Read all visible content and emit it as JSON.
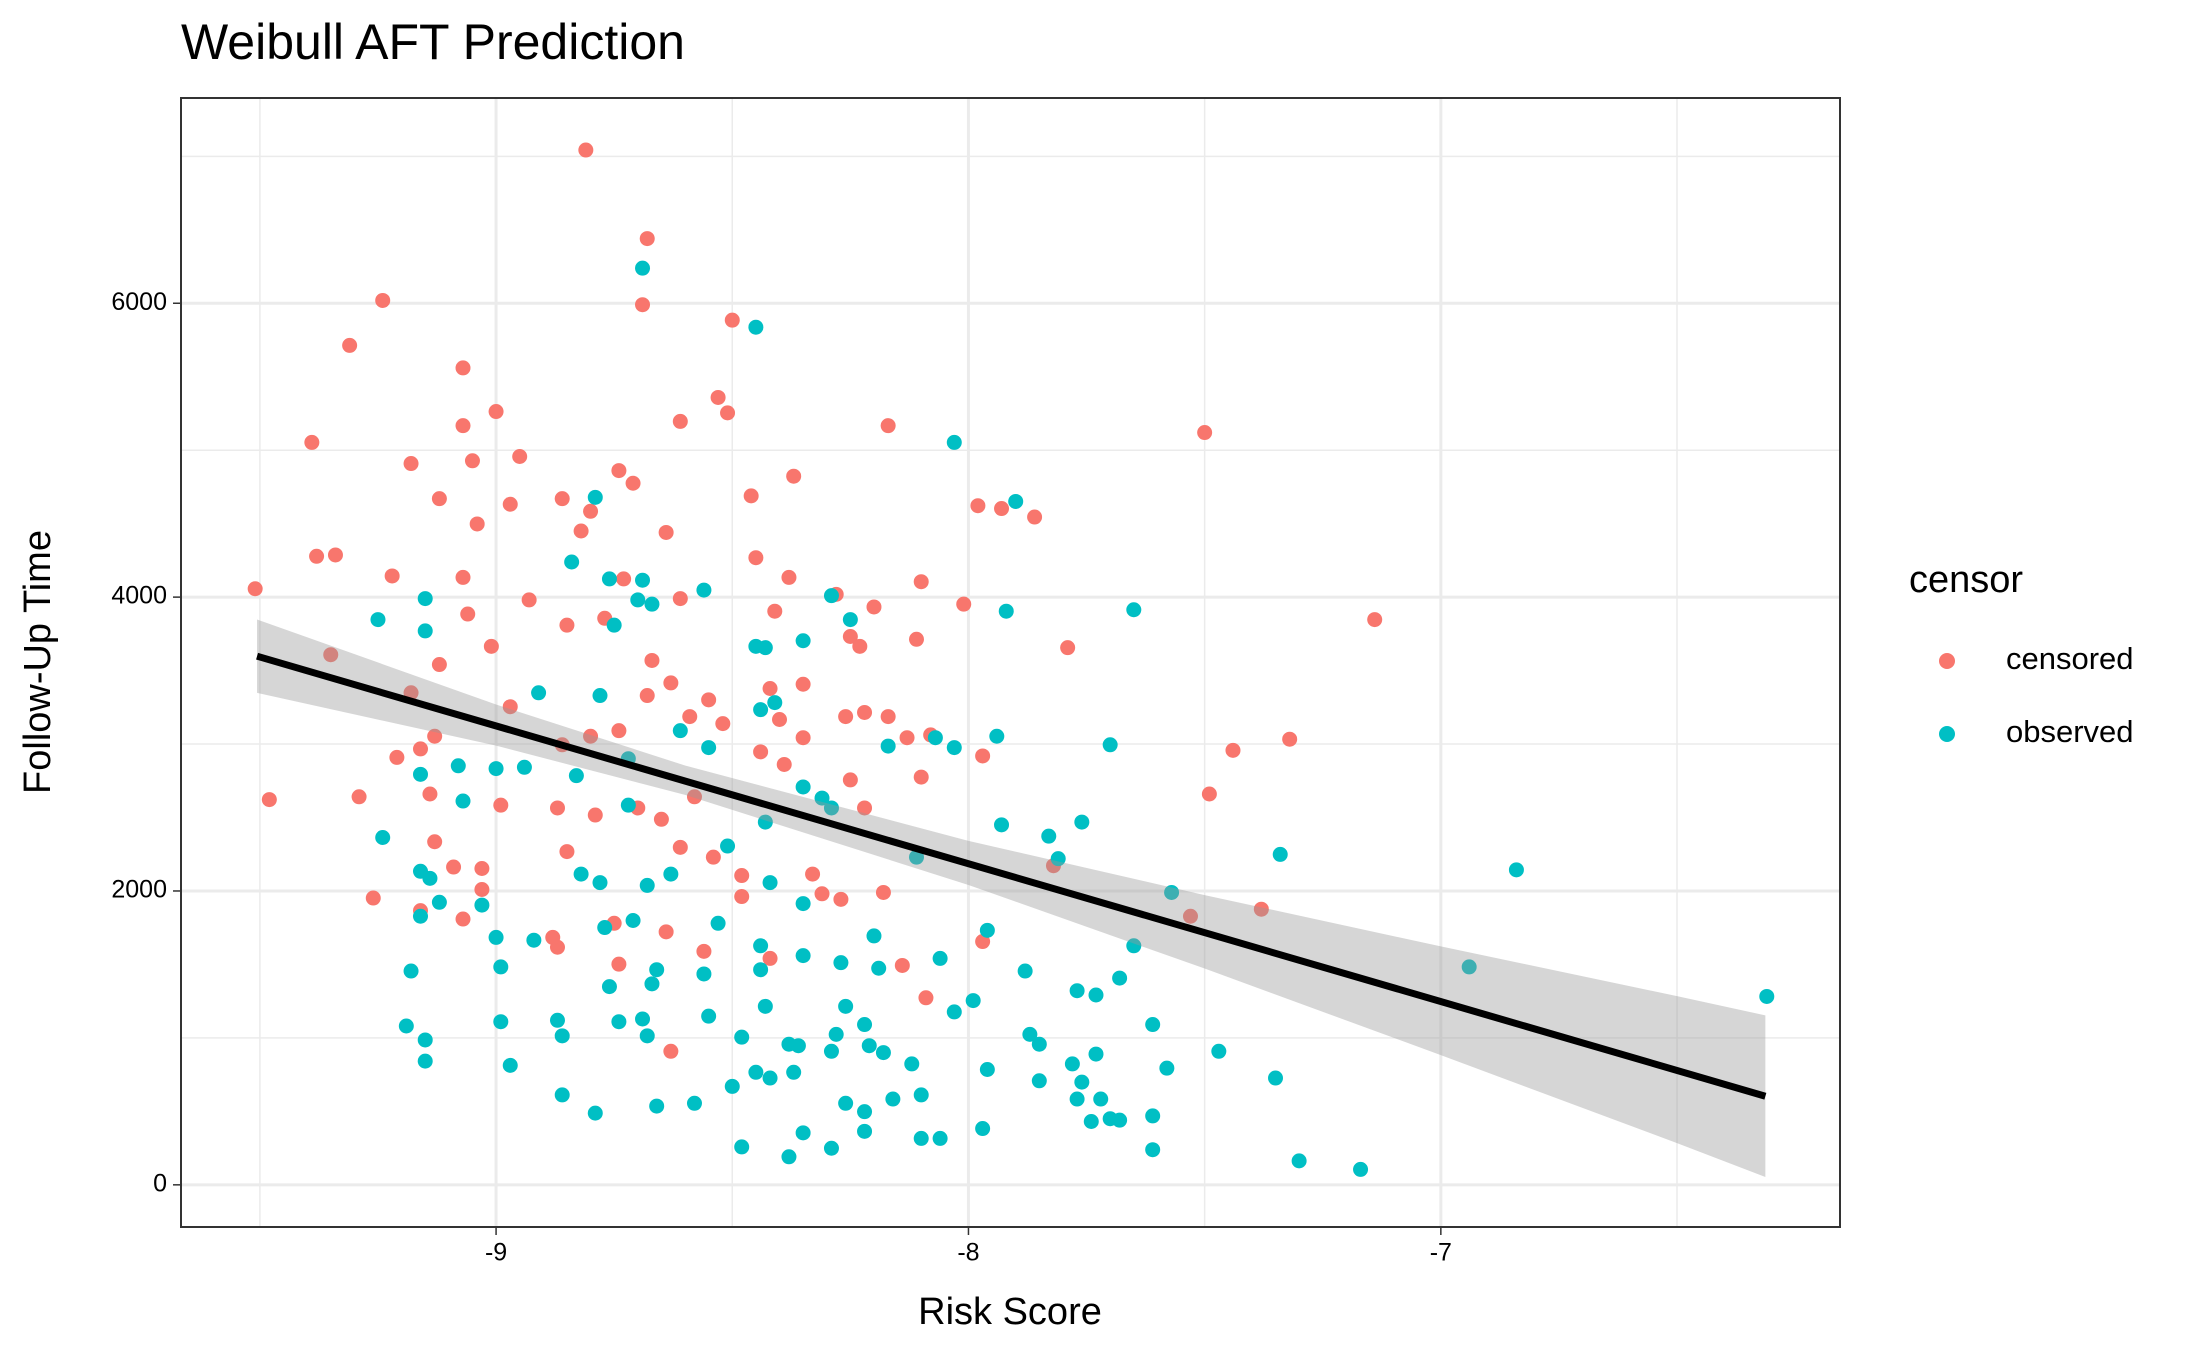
{
  "chart_data": {
    "type": "scatter",
    "title": "Weibull AFT Prediction",
    "x_label": "Risk Score",
    "y_label": "Follow-Up Time",
    "legend_title": "censor",
    "legend_position": "right",
    "grid": true,
    "xlim": [
      -9.667,
      -6.155
    ],
    "ylim": [
      -287,
      7397
    ],
    "xticks": [
      -9,
      -8,
      -7
    ],
    "yticks": [
      0,
      2000,
      4000,
      6000
    ],
    "x_minor_grid": [
      -9.5,
      -8.5,
      -7.5,
      -6.5
    ],
    "y_minor_grid": [
      1000,
      3000,
      5000,
      7000
    ],
    "series": [
      {
        "name": "censored",
        "color": "#F8766D",
        "x": [
          -9.51,
          -9.48,
          -9.39,
          -9.31,
          -9.24,
          -9.38,
          -9.34,
          -9.35,
          -9.29,
          -9.26,
          -9.22,
          -9.18,
          -9.12,
          -9.07,
          -9.07,
          -9.05,
          -9.0,
          -8.95,
          -8.97,
          -9.04,
          -9.07,
          -9.06,
          -9.01,
          -9.12,
          -9.18,
          -9.13,
          -9.16,
          -9.21,
          -9.14,
          -9.13,
          -9.09,
          -9.16,
          -9.07,
          -9.03,
          -9.03,
          -8.99,
          -8.97,
          -8.93,
          -8.86,
          -8.81,
          -8.68,
          -8.69,
          -8.82,
          -8.8,
          -8.74,
          -8.71,
          -8.64,
          -8.61,
          -8.85,
          -8.77,
          -8.73,
          -8.67,
          -8.63,
          -8.59,
          -8.55,
          -8.52,
          -8.68,
          -8.74,
          -8.8,
          -8.86,
          -8.87,
          -8.85,
          -8.79,
          -8.7,
          -8.65,
          -8.61,
          -8.54,
          -8.5,
          -8.53,
          -8.51,
          -8.61,
          -8.46,
          -8.45,
          -8.37,
          -8.41,
          -8.38,
          -8.42,
          -8.35,
          -8.4,
          -8.44,
          -8.39,
          -8.35,
          -8.28,
          -8.25,
          -8.2,
          -8.17,
          -8.23,
          -8.26,
          -8.22,
          -8.17,
          -8.13,
          -8.1,
          -8.11,
          -8.08,
          -8.1,
          -8.22,
          -8.25,
          -8.33,
          -8.31,
          -8.27,
          -8.18,
          -8.42,
          -8.48,
          -8.48,
          -8.56,
          -8.63,
          -8.58,
          -8.01,
          -7.98,
          -7.93,
          -7.86,
          -7.79,
          -7.97,
          -7.97,
          -8.09,
          -8.14,
          -7.82,
          -7.5,
          -7.44,
          -7.49,
          -7.32,
          -7.14,
          -7.38,
          -7.53,
          -8.75,
          -8.74,
          -8.87,
          -8.88,
          -8.64
        ],
        "values": [
          4057,
          2622,
          5053,
          5713,
          6019,
          4278,
          4287,
          3608,
          2641,
          1952,
          4144,
          4909,
          4670,
          5560,
          5167,
          4928,
          5263,
          4957,
          4632,
          4498,
          4134,
          3885,
          3665,
          3541,
          3349,
          3053,
          2967,
          2909,
          2660,
          2335,
          2163,
          1866,
          1809,
          2153,
          2010,
          2584,
          3254,
          3981,
          4670,
          7043,
          6440,
          5990,
          4450,
          4584,
          4861,
          4775,
          4440,
          3990,
          3809,
          3856,
          4124,
          3569,
          3416,
          3187,
          3301,
          3139,
          3330,
          3091,
          3053,
          2995,
          2565,
          2268,
          2517,
          2565,
          2488,
          2297,
          2230,
          5885,
          5359,
          5254,
          5196,
          4689,
          4268,
          4823,
          3904,
          4134,
          3378,
          3407,
          3167,
          2947,
          2861,
          3043,
          4019,
          3732,
          3933,
          5167,
          3665,
          3187,
          3215,
          3187,
          3043,
          4105,
          3713,
          3062,
          2775,
          2565,
          2756,
          2115,
          1981,
          1943,
          1990,
          1541,
          2105,
          1962,
          1589,
          909,
          2641,
          3952,
          4622,
          4603,
          4545,
          3656,
          2919,
          1656,
          1273,
          1493,
          2172,
          5120,
          2957,
          2660,
          3033,
          3847,
          1876,
          1828,
          1780,
          1502,
          1617,
          1684,
          1722
        ]
      },
      {
        "name": "observed",
        "color": "#00BFC4",
        "x": [
          -9.25,
          -9.24,
          -9.15,
          -9.15,
          -9.16,
          -9.16,
          -9.14,
          -9.12,
          -9.16,
          -9.18,
          -9.19,
          -9.15,
          -9.15,
          -9.08,
          -9.07,
          -9.0,
          -9.0,
          -8.99,
          -8.99,
          -8.97,
          -9.03,
          -8.94,
          -8.91,
          -8.92,
          -8.87,
          -8.86,
          -8.86,
          -8.79,
          -8.84,
          -8.79,
          -8.76,
          -8.75,
          -8.78,
          -8.83,
          -8.82,
          -8.78,
          -8.77,
          -8.76,
          -8.74,
          -8.69,
          -8.7,
          -8.69,
          -8.67,
          -8.72,
          -8.72,
          -8.71,
          -8.68,
          -8.67,
          -8.66,
          -8.69,
          -8.68,
          -8.66,
          -8.61,
          -8.63,
          -8.56,
          -8.55,
          -8.51,
          -8.53,
          -8.56,
          -8.55,
          -8.58,
          -8.48,
          -8.5,
          -8.48,
          -8.45,
          -8.45,
          -8.43,
          -8.44,
          -8.41,
          -8.43,
          -8.42,
          -8.44,
          -8.44,
          -8.43,
          -8.45,
          -8.42,
          -8.38,
          -8.38,
          -8.36,
          -8.35,
          -8.35,
          -8.31,
          -8.29,
          -8.35,
          -8.35,
          -8.37,
          -8.35,
          -8.29,
          -8.29,
          -8.25,
          -8.27,
          -8.26,
          -8.28,
          -8.29,
          -8.26,
          -8.22,
          -8.21,
          -8.22,
          -8.22,
          -8.2,
          -8.19,
          -8.18,
          -8.16,
          -8.12,
          -8.1,
          -8.1,
          -8.06,
          -8.17,
          -8.11,
          -8.07,
          -8.03,
          -8.03,
          -8.06,
          -8.03,
          -7.99,
          -7.96,
          -7.96,
          -7.97,
          -7.94,
          -7.93,
          -7.92,
          -7.9,
          -7.88,
          -7.87,
          -7.85,
          -7.85,
          -7.83,
          -7.81,
          -7.78,
          -7.77,
          -7.76,
          -7.76,
          -7.77,
          -7.74,
          -7.73,
          -7.73,
          -7.72,
          -7.7,
          -7.68,
          -7.7,
          -7.68,
          -7.65,
          -7.65,
          -7.61,
          -7.61,
          -7.61,
          -7.58,
          -7.57,
          -7.47,
          -7.35,
          -7.34,
          -7.3,
          -7.17,
          -6.94,
          -6.84,
          -6.31
        ],
        "values": [
          3847,
          2364,
          3990,
          3770,
          2794,
          2134,
          2086,
          1923,
          1828,
          1455,
          1081,
          986,
          842,
          2852,
          2612,
          2833,
          1684,
          1483,
          1110,
          813,
          1904,
          2842,
          3349,
          1665,
          1120,
          1014,
          612,
          488,
          4239,
          4679,
          4124,
          3809,
          3330,
          2785,
          2115,
          2057,
          1751,
          1349,
          1110,
          4115,
          3981,
          6239,
          3952,
          2900,
          2584,
          1799,
          2038,
          1368,
          1464,
          1129,
          1014,
          536,
          3091,
          2115,
          4048,
          2976,
          2306,
          1780,
          1435,
          1148,
          555,
          1005,
          670,
          258,
          5837,
          3665,
          3656,
          3234,
          3282,
          2469,
          2057,
          1627,
          1464,
          1215,
          766,
          727,
          191,
          957,
          947,
          3703,
          2708,
          2632,
          2565,
          1560,
          1914,
          766,
          354,
          249,
          4010,
          3847,
          1512,
          1215,
          1024,
          909,
          555,
          1091,
          947,
          498,
          364,
          1694,
          1474,
          900,
          584,
          823,
          612,
          316,
          316,
          2986,
          2230,
          3043,
          5053,
          2976,
          1541,
          1177,
          1254,
          1732,
          785,
          383,
          3053,
          2450,
          3904,
          4651,
          1455,
          1024,
          957,
          708,
          2373,
          2220,
          823,
          1321,
          2469,
          699,
          584,
          431,
          1292,
          890,
          584,
          2995,
          1407,
          450,
          440,
          3914,
          1627,
          1091,
          469,
          239,
          794,
          1990,
          909,
          727,
          2249,
          163,
          105,
          1483,
          2144,
          1282
        ]
      }
    ],
    "fit": {
      "color": "#000000",
      "x": [
        -9.506,
        -6.313
      ],
      "values": [
        3598,
        603
      ]
    },
    "band": {
      "color": "#999999",
      "x": [
        -9.506,
        -9,
        -8.6,
        -8,
        -7.5,
        -7,
        -6.5,
        -6.313
      ],
      "lower": [
        3348,
        2989,
        2654,
        2041,
        1472,
        883,
        284,
        53
      ],
      "upper": [
        3848,
        3269,
        2854,
        2341,
        1972,
        1623,
        1284,
        1153
      ]
    }
  }
}
